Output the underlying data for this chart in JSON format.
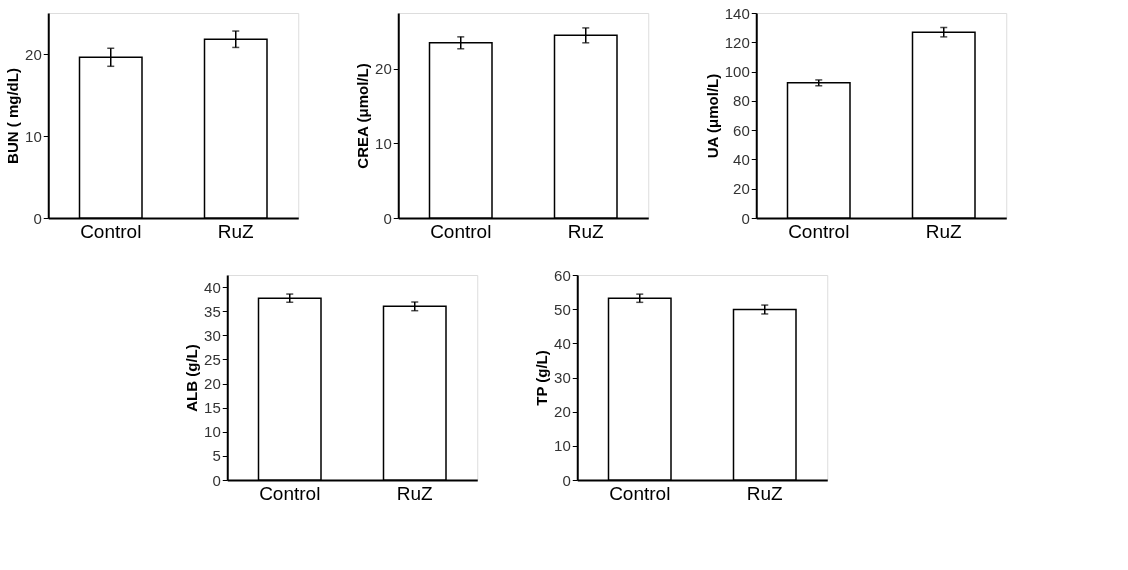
{
  "chart_data": [
    {
      "type": "bar",
      "categories": [
        "Control",
        "RuZ"
      ],
      "values": [
        19.6,
        21.8
      ],
      "errors": [
        1.1,
        1.0
      ],
      "color": "#ffffff",
      "ylabel": "BUN ( mg/dL)",
      "ylim": [
        0,
        25
      ],
      "yticks": [
        0,
        10,
        20
      ]
    },
    {
      "type": "bar",
      "categories": [
        "Control",
        "RuZ"
      ],
      "values": [
        23.5,
        24.5
      ],
      "errors": [
        0.8,
        1.0
      ],
      "color": "#ffffff",
      "ylabel": "CREA (μmol/L)",
      "ylim": [
        0,
        27.5
      ],
      "yticks": [
        0,
        10,
        20
      ]
    },
    {
      "type": "bar",
      "categories": [
        "Control",
        "RuZ"
      ],
      "values": [
        92.3,
        126.9
      ],
      "errors": [
        2,
        3.2
      ],
      "color": "#ffffff",
      "ylabel": "UA (μmol/L)",
      "ylim": [
        0,
        140
      ],
      "yticks": [
        0,
        20,
        40,
        60,
        80,
        100,
        120,
        140
      ]
    },
    {
      "type": "bar",
      "categories": [
        "Control",
        "RuZ"
      ],
      "values": [
        37.7,
        36.0
      ],
      "errors": [
        0.85,
        0.9
      ],
      "color": "#ffffff",
      "ylabel": "ALB (g/L)",
      "ylim": [
        0,
        42.5
      ],
      "yticks": [
        0,
        5,
        10,
        15,
        20,
        25,
        30,
        35,
        40
      ]
    },
    {
      "type": "bar",
      "categories": [
        "Control",
        "RuZ"
      ],
      "values": [
        53.2,
        49.9
      ],
      "errors": [
        1.2,
        1.3
      ],
      "color": "#ffffff",
      "ylabel": "TP (g/L)",
      "ylim": [
        0,
        60
      ],
      "yticks": [
        0,
        10,
        20,
        30,
        40,
        50,
        60
      ]
    }
  ]
}
